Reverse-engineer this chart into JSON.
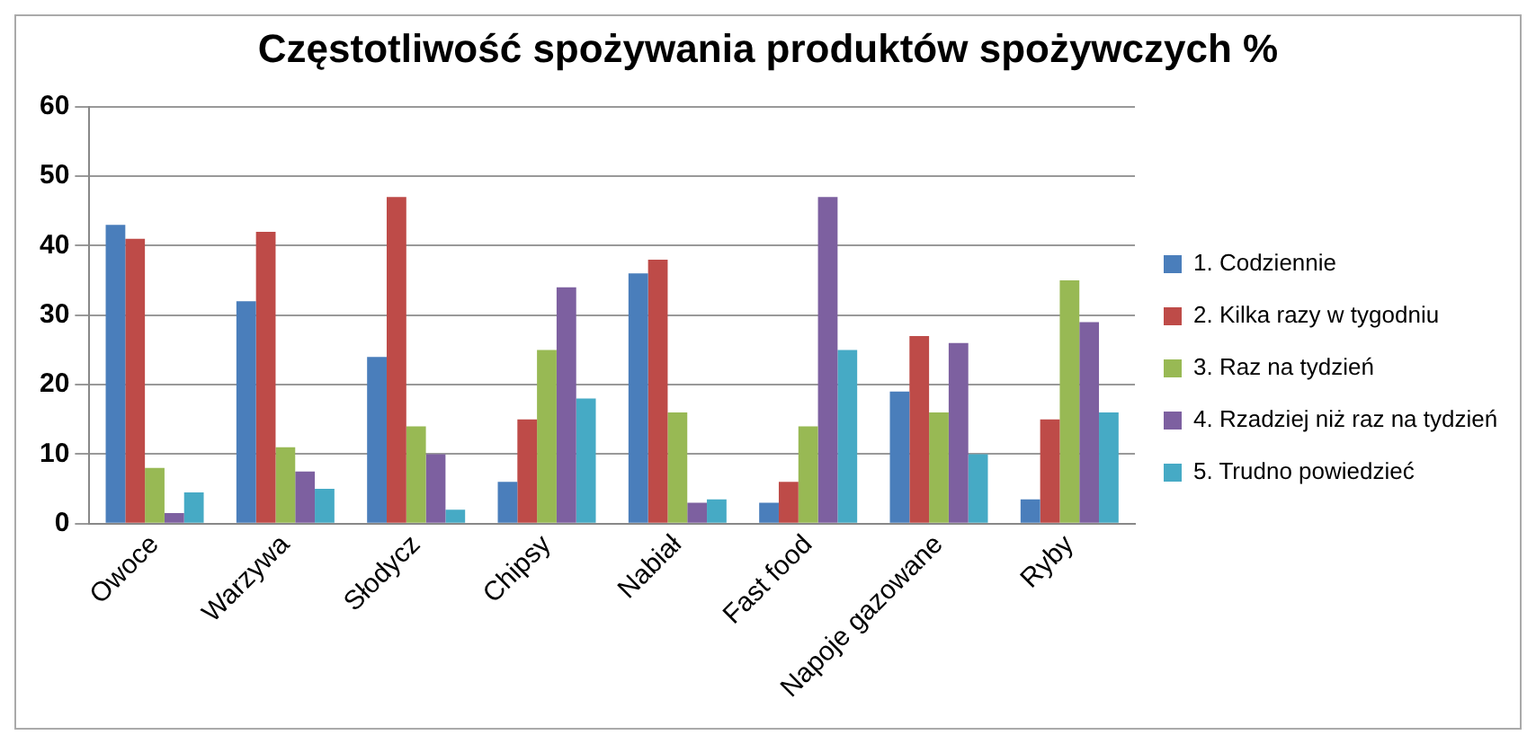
{
  "chart_data": {
    "type": "bar",
    "title": "Częstotliwość spożywania produktów spożywczych %",
    "categories": [
      "Owoce",
      "Warzywa",
      "Słodycz",
      "Chipsy",
      "Nabiał",
      "Fast food",
      "Napoje gazowane",
      "Ryby"
    ],
    "series": [
      {
        "name": "1. Codziennie",
        "color": "#4a7ebb",
        "values": [
          43,
          32,
          24,
          6,
          36,
          3,
          19,
          3.5
        ]
      },
      {
        "name": "2. Kilka razy w tygodniu",
        "color": "#be4b48",
        "values": [
          41,
          42,
          47,
          15,
          38,
          6,
          27,
          15
        ]
      },
      {
        "name": "3. Raz na tydzień",
        "color": "#98b954",
        "values": [
          8,
          11,
          14,
          25,
          16,
          14,
          16,
          35
        ]
      },
      {
        "name": "4. Rzadziej niż raz na tydzień",
        "color": "#7d60a0",
        "values": [
          1.5,
          7.5,
          10,
          34,
          3,
          47,
          26,
          29
        ]
      },
      {
        "name": "5. Trudno powiedzieć",
        "color": "#46aac5",
        "values": [
          4.5,
          5,
          2,
          18,
          3.5,
          25,
          10,
          16
        ]
      }
    ],
    "ylim": [
      0,
      60
    ],
    "yticks": [
      0,
      10,
      20,
      30,
      40,
      50,
      60
    ],
    "grid": "y",
    "legend": "right"
  }
}
